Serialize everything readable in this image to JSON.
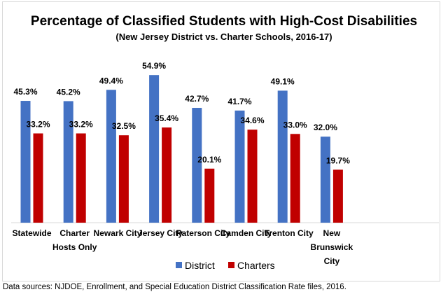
{
  "chart_data": {
    "type": "bar",
    "title": "Percentage of Classified Students with High-Cost Disabilities",
    "subtitle": "(New Jersey District vs. Charter Schools, 2016-17)",
    "categories": [
      "Statewide",
      "Charter Hosts Only",
      "Newark City",
      "Jersey City",
      "Paterson City",
      "Camden City",
      "Trenton City",
      "New Brunswick City"
    ],
    "category_lines": [
      [
        "Statewide"
      ],
      [
        "Charter",
        "Hosts Only"
      ],
      [
        "Newark City"
      ],
      [
        "Jersey City"
      ],
      [
        "Paterson City"
      ],
      [
        "Camden City"
      ],
      [
        "Trenton City"
      ],
      [
        "New",
        "Brunswick",
        "City"
      ]
    ],
    "series": [
      {
        "name": "District",
        "color": "#4472c4",
        "values": [
          45.3,
          45.2,
          49.4,
          54.9,
          42.7,
          41.7,
          49.1,
          32.0
        ],
        "labels": [
          "45.3%",
          "45.2%",
          "49.4%",
          "54.9%",
          "42.7%",
          "41.7%",
          "49.1%",
          "32.0%"
        ]
      },
      {
        "name": "Charters",
        "color": "#c00000",
        "values": [
          33.2,
          33.2,
          32.5,
          35.4,
          20.1,
          34.6,
          33.0,
          19.7
        ],
        "labels": [
          "33.2%",
          "33.2%",
          "32.5%",
          "35.4%",
          "20.1%",
          "34.6%",
          "33.0%",
          "19.7%"
        ]
      }
    ],
    "xlabel": "",
    "ylabel": "",
    "ylim": [
      0,
      55
    ],
    "grid": false,
    "legend": "bottom"
  },
  "footnote": "Data sources: NJDOE, Enrollment, and Special Education District Classification Rate files, 2016."
}
